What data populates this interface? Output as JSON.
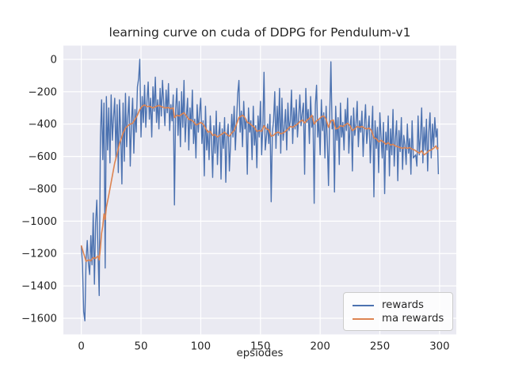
{
  "figure": {
    "background": "#ffffff",
    "plot_background": "#eaeaf2",
    "grid_color": "#ffffff",
    "text_color": "#262626"
  },
  "chart_data": {
    "type": "line",
    "title": "learning curve on cuda of DDPG for Pendulum-v1",
    "xlabel": "epsiodes",
    "ylabel": "",
    "xlim": [
      -15,
      314
    ],
    "ylim": [
      -1700,
      85
    ],
    "grid": true,
    "xticks": [
      0,
      50,
      100,
      150,
      200,
      250,
      300
    ],
    "xtick_labels": [
      "0",
      "50",
      "100",
      "150",
      "200",
      "250",
      "300"
    ],
    "yticks": [
      0,
      -200,
      -400,
      -600,
      -800,
      -1000,
      -1200,
      -1400,
      -1600
    ],
    "ytick_labels": [
      "0",
      "−200",
      "−400",
      "−600",
      "−800",
      "−1000",
      "−1200",
      "−1400",
      "−1600"
    ],
    "legend": {
      "position": "lower right",
      "entries": [
        {
          "label": "rewards",
          "color": "#4c72b0"
        },
        {
          "label": "ma rewards",
          "color": "#dd8452"
        }
      ]
    },
    "series": [
      {
        "name": "rewards",
        "color": "#4c72b0",
        "x_start": 0,
        "x_step": 1,
        "values": [
          -1150,
          -1270,
          -1560,
          -1616,
          -1240,
          -1120,
          -1260,
          -1330,
          -1090,
          -1270,
          -950,
          -1390,
          -1010,
          -870,
          -1190,
          -1460,
          -480,
          -250,
          -620,
          -270,
          -1290,
          -230,
          -560,
          -300,
          -640,
          -220,
          -500,
          -360,
          -240,
          -610,
          -280,
          -700,
          -250,
          -450,
          -770,
          -270,
          -630,
          -210,
          -540,
          -350,
          -230,
          -660,
          -390,
          -240,
          -580,
          -310,
          -450,
          -170,
          -120,
          0,
          -480,
          -230,
          -390,
          -160,
          -420,
          -260,
          -140,
          -370,
          -240,
          -480,
          -170,
          -320,
          -110,
          -390,
          -250,
          -430,
          -180,
          -350,
          -130,
          -270,
          -410,
          -190,
          -330,
          -150,
          -440,
          -280,
          -380,
          -220,
          -900,
          -310,
          -180,
          -470,
          -260,
          -540,
          -200,
          -420,
          -130,
          -510,
          -350,
          -240,
          -560,
          -300,
          -430,
          -190,
          -520,
          -370,
          -610,
          -280,
          -450,
          -330,
          -240,
          -520,
          -380,
          -720,
          -290,
          -560,
          -440,
          -620,
          -350,
          -500,
          -730,
          -410,
          -580,
          -320,
          -650,
          -470,
          -390,
          -740,
          -430,
          -550,
          -360,
          -760,
          -480,
          -400,
          -690,
          -520,
          -340,
          -480,
          -290,
          -560,
          -380,
          -210,
          -130,
          -450,
          -320,
          -540,
          -260,
          -430,
          -370,
          -710,
          -300,
          -450,
          -380,
          -620,
          -290,
          -530,
          -410,
          -670,
          -350,
          -480,
          -260,
          -590,
          -420,
          -80,
          -560,
          -480,
          -400,
          -520,
          -340,
          -880,
          -450,
          -380,
          -200,
          -550,
          -290,
          -470,
          -180,
          -580,
          -240,
          -500,
          -420,
          -310,
          -560,
          -270,
          -440,
          -380,
          -190,
          -520,
          -300,
          -430,
          -250,
          -480,
          -360,
          -220,
          -410,
          -330,
          -270,
          -710,
          -180,
          -390,
          -310,
          -520,
          -230,
          -420,
          -350,
          -890,
          -280,
          -160,
          -480,
          -370,
          -590,
          -250,
          -440,
          -330,
          -610,
          -290,
          -510,
          -780,
          -350,
          -15,
          -430,
          -380,
          -820,
          -290,
          -500,
          -360,
          -650,
          -270,
          -480,
          -390,
          -560,
          -310,
          -440,
          -240,
          -580,
          -420,
          -350,
          -690,
          -300,
          -470,
          -400,
          -260,
          -540,
          -380,
          -450,
          -320,
          -600,
          -410,
          -280,
          -520,
          -430,
          -350,
          -640,
          -460,
          -290,
          -850,
          -380,
          -550,
          -420,
          -700,
          -330,
          -480,
          -610,
          -390,
          -830,
          -450,
          -560,
          -350,
          -720,
          -430,
          -590,
          -310,
          -660,
          -490,
          -380,
          -750,
          -440,
          -570,
          -360,
          -680,
          -470,
          -530,
          -650,
          -400,
          -580,
          -490,
          -710,
          -380,
          -610,
          -600,
          -590,
          -660,
          -350,
          -590,
          -480,
          -300,
          -640,
          -420,
          -560,
          -370,
          -690,
          -450,
          -330,
          -610,
          -400,
          -540,
          -360,
          -480,
          -430,
          -710
        ]
      },
      {
        "name": "ma rewards",
        "color": "#dd8452",
        "points": [
          [
            0,
            -1150
          ],
          [
            2,
            -1200
          ],
          [
            4,
            -1248
          ],
          [
            6,
            -1240
          ],
          [
            8,
            -1245
          ],
          [
            10,
            -1225
          ],
          [
            12,
            -1230
          ],
          [
            14,
            -1215
          ],
          [
            15,
            -1240
          ],
          [
            16,
            -1165
          ],
          [
            17,
            -1075
          ],
          [
            18,
            -1030
          ],
          [
            19,
            -955
          ],
          [
            20,
            -990
          ],
          [
            21,
            -915
          ],
          [
            23,
            -840
          ],
          [
            25,
            -760
          ],
          [
            27,
            -680
          ],
          [
            28,
            -640
          ],
          [
            30,
            -585
          ],
          [
            32,
            -520
          ],
          [
            34,
            -480
          ],
          [
            35,
            -455
          ],
          [
            37,
            -425
          ],
          [
            39,
            -410
          ],
          [
            41,
            -400
          ],
          [
            43,
            -395
          ],
          [
            45,
            -370
          ],
          [
            47,
            -345
          ],
          [
            49,
            -310
          ],
          [
            51,
            -290
          ],
          [
            53,
            -282
          ],
          [
            55,
            -292
          ],
          [
            57,
            -290
          ],
          [
            60,
            -300
          ],
          [
            63,
            -290
          ],
          [
            65,
            -285
          ],
          [
            67,
            -292
          ],
          [
            70,
            -300
          ],
          [
            73,
            -298
          ],
          [
            75,
            -305
          ],
          [
            77,
            -300
          ],
          [
            78,
            -360
          ],
          [
            80,
            -345
          ],
          [
            82,
            -350
          ],
          [
            84,
            -340
          ],
          [
            86,
            -330
          ],
          [
            88,
            -350
          ],
          [
            90,
            -370
          ],
          [
            92,
            -375
          ],
          [
            94,
            -385
          ],
          [
            96,
            -405
          ],
          [
            98,
            -400
          ],
          [
            100,
            -390
          ],
          [
            102,
            -400
          ],
          [
            104,
            -425
          ],
          [
            106,
            -450
          ],
          [
            108,
            -445
          ],
          [
            110,
            -470
          ],
          [
            112,
            -465
          ],
          [
            114,
            -480
          ],
          [
            116,
            -470
          ],
          [
            118,
            -460
          ],
          [
            120,
            -450
          ],
          [
            122,
            -465
          ],
          [
            124,
            -475
          ],
          [
            126,
            -455
          ],
          [
            128,
            -440
          ],
          [
            130,
            -400
          ],
          [
            132,
            -360
          ],
          [
            135,
            -345
          ],
          [
            137,
            -360
          ],
          [
            139,
            -390
          ],
          [
            141,
            -395
          ],
          [
            143,
            -410
          ],
          [
            145,
            -420
          ],
          [
            147,
            -445
          ],
          [
            149,
            -440
          ],
          [
            151,
            -445
          ],
          [
            153,
            -410
          ],
          [
            155,
            -430
          ],
          [
            157,
            -435
          ],
          [
            159,
            -475
          ],
          [
            161,
            -470
          ],
          [
            163,
            -455
          ],
          [
            165,
            -450
          ],
          [
            167,
            -460
          ],
          [
            169,
            -455
          ],
          [
            171,
            -445
          ],
          [
            173,
            -430
          ],
          [
            175,
            -415
          ],
          [
            177,
            -420
          ],
          [
            179,
            -410
          ],
          [
            181,
            -400
          ],
          [
            183,
            -385
          ],
          [
            185,
            -375
          ],
          [
            187,
            -395
          ],
          [
            189,
            -375
          ],
          [
            191,
            -365
          ],
          [
            193,
            -345
          ],
          [
            195,
            -400
          ],
          [
            197,
            -380
          ],
          [
            199,
            -370
          ],
          [
            201,
            -355
          ],
          [
            203,
            -350
          ],
          [
            205,
            -370
          ],
          [
            207,
            -420
          ],
          [
            209,
            -380
          ],
          [
            211,
            -375
          ],
          [
            213,
            -430
          ],
          [
            215,
            -425
          ],
          [
            217,
            -410
          ],
          [
            219,
            -415
          ],
          [
            221,
            -405
          ],
          [
            223,
            -395
          ],
          [
            225,
            -410
          ],
          [
            227,
            -440
          ],
          [
            229,
            -430
          ],
          [
            231,
            -415
          ],
          [
            233,
            -420
          ],
          [
            235,
            -415
          ],
          [
            237,
            -425
          ],
          [
            239,
            -430
          ],
          [
            241,
            -425
          ],
          [
            243,
            -440
          ],
          [
            245,
            -485
          ],
          [
            247,
            -490
          ],
          [
            249,
            -510
          ],
          [
            251,
            -500
          ],
          [
            253,
            -510
          ],
          [
            255,
            -525
          ],
          [
            257,
            -515
          ],
          [
            259,
            -530
          ],
          [
            261,
            -525
          ],
          [
            263,
            -535
          ],
          [
            265,
            -540
          ],
          [
            267,
            -545
          ],
          [
            269,
            -550
          ],
          [
            271,
            -545
          ],
          [
            273,
            -550
          ],
          [
            275,
            -545
          ],
          [
            277,
            -555
          ],
          [
            279,
            -560
          ],
          [
            281,
            -570
          ],
          [
            283,
            -580
          ],
          [
            285,
            -565
          ],
          [
            287,
            -590
          ],
          [
            289,
            -580
          ],
          [
            291,
            -565
          ],
          [
            293,
            -560
          ],
          [
            295,
            -550
          ],
          [
            297,
            -535
          ],
          [
            298,
            -555
          ],
          [
            299,
            -545
          ]
        ]
      }
    ]
  }
}
